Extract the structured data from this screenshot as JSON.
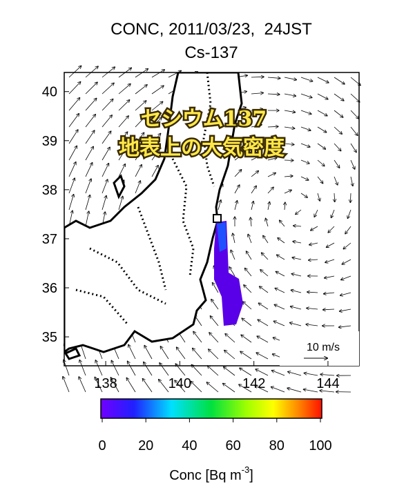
{
  "title": "CONC, 2011/03/23,  24JST",
  "subtitle": "Cs-137",
  "annotation": [
    "セシウム137",
    "地表上の大気密度"
  ],
  "map": {
    "xlim": [
      136.88,
      144.84
    ],
    "ylim": [
      34.41,
      40.39
    ],
    "xticks": [
      138,
      140,
      142,
      144
    ],
    "yticks": [
      35,
      36,
      37,
      38,
      39,
      40
    ]
  },
  "wind_legend": "10 m/s",
  "colorbar": {
    "lim": [
      0,
      100
    ],
    "ticks": [
      0,
      20,
      40,
      60,
      80,
      100
    ],
    "label": "Conc [Bq m",
    "label_superscript": "-3",
    "label_suffix": "]"
  }
}
